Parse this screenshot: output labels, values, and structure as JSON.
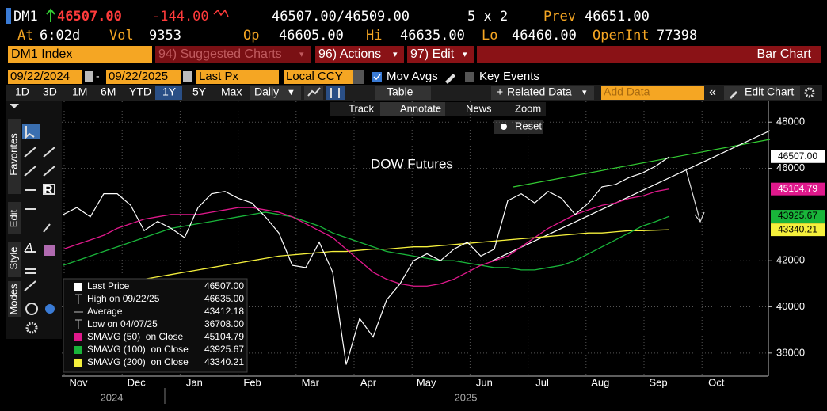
{
  "header": {
    "ticker": "DM1",
    "last": "46507.00",
    "change": "-144.00",
    "bid_ask": "46507.00/46509.00",
    "size": "5 x 2",
    "prev_label": "Prev",
    "prev": "46651.00",
    "stats": [
      {
        "label": "At",
        "value": "6:02d"
      },
      {
        "label": "Vol",
        "value": "9353"
      },
      {
        "label": "Op",
        "value": "46605.00"
      },
      {
        "label": "Hi",
        "value": "46635.00"
      },
      {
        "label": "Lo",
        "value": "46460.00"
      },
      {
        "label": "OpenInt",
        "value": "77398"
      }
    ]
  },
  "menu": {
    "security": "DM1 Index",
    "suggested": "94) Suggested Charts",
    "actions": "96) Actions",
    "edit": "97) Edit",
    "view": "Bar Chart"
  },
  "settings": {
    "start": "09/22/2024",
    "end": "09/22/2025",
    "field": "Last Px",
    "currency": "Local CCY",
    "mov_avgs": "Mov Avgs",
    "key_events": "Key Events"
  },
  "toolbar": {
    "ranges": [
      "1D",
      "3D",
      "1M",
      "6M",
      "YTD",
      "1Y",
      "5Y",
      "Max"
    ],
    "selected": "1Y",
    "period": "Daily",
    "table": "Table",
    "related": "Related Data",
    "add_data": "Add Data",
    "edit_chart": "Edit Chart"
  },
  "chart_tools": [
    "Track",
    "Annotate",
    "News",
    "Zoom",
    "Reset"
  ],
  "side_tabs": [
    "Favorites",
    "Edit",
    "Style",
    "Modes"
  ],
  "chart_data": {
    "type": "line",
    "title": "DOW Futures",
    "months": [
      "Nov",
      "Dec",
      "Jan",
      "Feb",
      "Mar",
      "Apr",
      "May",
      "Jun",
      "Jul",
      "Aug",
      "Sep",
      "Oct"
    ],
    "years": [
      "2024",
      "2025"
    ],
    "ylim": [
      37000,
      48900
    ],
    "yticks": [
      38000,
      40000,
      42000,
      46000,
      48000
    ],
    "grid": true,
    "series": [
      {
        "name": "Last Price",
        "color": "#ffffff",
        "values": [
          44000,
          44300,
          43900,
          44900,
          44900,
          44400,
          43300,
          43700,
          43400,
          43000,
          44300,
          44900,
          45000,
          44700,
          44500,
          43900,
          43200,
          41800,
          41700,
          42800,
          41500,
          37500,
          39500,
          38700,
          40300,
          41000,
          42000,
          42300,
          42000,
          42500,
          42800,
          42200,
          42500,
          44600,
          44900,
          44500,
          45000,
          44700,
          44000,
          44500,
          45200,
          45300,
          45600,
          45800,
          46100,
          46507
        ]
      },
      {
        "name": "SMAVG (50)  on Close",
        "color": "#e0198c",
        "values": [
          42500,
          42700,
          42900,
          43100,
          43400,
          43600,
          43800,
          43900,
          44000,
          44000,
          44000,
          44100,
          44200,
          44300,
          44300,
          44200,
          44100,
          43900,
          43600,
          43300,
          43000,
          42500,
          42000,
          41500,
          41200,
          41000,
          40900,
          40900,
          41000,
          41200,
          41500,
          41800,
          42000,
          42200,
          42600,
          43000,
          43400,
          43700,
          44000,
          44200,
          44400,
          44500,
          44700,
          44800,
          45000,
          45104.79
        ]
      },
      {
        "name": "SMAVG (100)  on Close",
        "color": "#19b53a",
        "values": [
          41800,
          42000,
          42200,
          42400,
          42600,
          42800,
          43000,
          43200,
          43400,
          43500,
          43600,
          43700,
          43800,
          43900,
          44000,
          44100,
          44000,
          43900,
          43700,
          43500,
          43200,
          43000,
          42800,
          42600,
          42400,
          42300,
          42200,
          42100,
          42000,
          42000,
          41900,
          41800,
          41700,
          41700,
          41600,
          41600,
          41700,
          41800,
          42000,
          42300,
          42600,
          42900,
          43200,
          43500,
          43700,
          43925.67
        ]
      },
      {
        "name": "SMAVG (200)  on Close",
        "color": "#f5f03c",
        "values": [
          40600,
          40700,
          40800,
          40900,
          41000,
          41100,
          41200,
          41300,
          41400,
          41500,
          41600,
          41700,
          41800,
          41900,
          42000,
          42100,
          42200,
          42250,
          42300,
          42350,
          42400,
          42400,
          42450,
          42500,
          42500,
          42550,
          42600,
          42600,
          42650,
          42700,
          42750,
          42800,
          42850,
          42900,
          42950,
          43000,
          43050,
          43100,
          43150,
          43200,
          43200,
          43250,
          43300,
          43300,
          43320,
          43340.21
        ]
      }
    ],
    "tags": [
      "46507.00",
      "45104.79",
      "43925.67",
      "43340.21"
    ],
    "legend": [
      {
        "name": "Last Price",
        "value": "46507.00"
      },
      {
        "name": "High on 09/22/25",
        "value": "46635.00"
      },
      {
        "name": "Average",
        "value": "43412.18"
      },
      {
        "name": "Low on 04/07/25",
        "value": "36708.00"
      },
      {
        "name": "SMAVG (50)  on Close",
        "value": "45104.79"
      },
      {
        "name": "SMAVG (100)  on Close",
        "value": "43925.67"
      },
      {
        "name": "SMAVG (200)  on Close",
        "value": "43340.21"
      }
    ]
  }
}
